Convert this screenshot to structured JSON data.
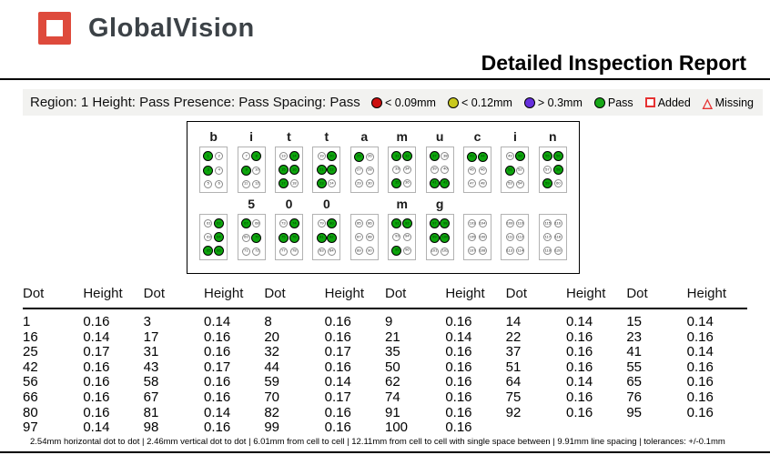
{
  "header": {
    "logo_text": "GlobalVision",
    "title": "Detailed Inspection Report"
  },
  "region_bar": {
    "summary": "Region: 1 Height: Pass Presence: Pass Spacing: Pass",
    "legend": [
      {
        "icon": "red-dot-icon",
        "shape": "circle",
        "color": "#cc0f0f",
        "label": "< 0.09mm"
      },
      {
        "icon": "yellow-dot-icon",
        "shape": "circle",
        "color": "#c9c91e",
        "label": "< 0.12mm"
      },
      {
        "icon": "purple-dot-icon",
        "shape": "circle",
        "color": "#6630dd",
        "label": "> 0.3mm"
      },
      {
        "icon": "green-dot-icon",
        "shape": "circle",
        "color": "#17a817",
        "label": "Pass"
      },
      {
        "icon": "added-square-icon",
        "shape": "square",
        "color": "#e63232",
        "label": "Added"
      },
      {
        "icon": "missing-triangle-icon",
        "shape": "triangle",
        "color": "#e63232",
        "label": "Missing"
      }
    ]
  },
  "braille": {
    "pass_color": "#0da50d",
    "rows": [
      {
        "cells": [
          {
            "label": "b",
            "start": 1,
            "raised": [
              1,
              3
            ]
          },
          {
            "label": "i",
            "start": 7,
            "raised": [
              8,
              9
            ]
          },
          {
            "label": "t",
            "start": 13,
            "raised": [
              14,
              15,
              16,
              17
            ]
          },
          {
            "label": "t",
            "start": 19,
            "raised": [
              20,
              21,
              22,
              23
            ]
          },
          {
            "label": "a",
            "start": 25,
            "raised": [
              25
            ]
          },
          {
            "label": "m",
            "start": 31,
            "raised": [
              31,
              32,
              35
            ]
          },
          {
            "label": "u",
            "start": 37,
            "raised": [
              37,
              41,
              42
            ]
          },
          {
            "label": "c",
            "start": 43,
            "raised": [
              43,
              44
            ]
          },
          {
            "label": "i",
            "start": 49,
            "raised": [
              50,
              51
            ]
          },
          {
            "label": "n",
            "start": 55,
            "raised": [
              55,
              56,
              58,
              59
            ]
          }
        ]
      },
      {
        "cells": [
          {
            "label": "",
            "start": 61,
            "raised": [
              62,
              64,
              65,
              66
            ]
          },
          {
            "label": "5",
            "start": 67,
            "raised": [
              67,
              70
            ]
          },
          {
            "label": "0",
            "start": 73,
            "raised": [
              74,
              75,
              76
            ]
          },
          {
            "label": "0",
            "start": 79,
            "raised": [
              80,
              81,
              82
            ]
          },
          {
            "label": "",
            "start": 85,
            "raised": []
          },
          {
            "label": "m",
            "start": 91,
            "raised": [
              91,
              92,
              95
            ]
          },
          {
            "label": "g",
            "start": 97,
            "raised": [
              97,
              98,
              99,
              100
            ]
          },
          {
            "label": "",
            "start": 103,
            "raised": []
          },
          {
            "label": "",
            "start": 109,
            "raised": []
          },
          {
            "label": "",
            "start": 115,
            "raised": []
          }
        ]
      }
    ]
  },
  "table": {
    "column_headers": [
      "Dot",
      "Height",
      "Dot",
      "Height",
      "Dot",
      "Height",
      "Dot",
      "Height",
      "Dot",
      "Height",
      "Dot",
      "Height"
    ],
    "rows": [
      [
        "1",
        "0.16",
        "3",
        "0.14",
        "8",
        "0.16",
        "9",
        "0.16",
        "14",
        "0.14",
        "15",
        "0.14"
      ],
      [
        "16",
        "0.14",
        "17",
        "0.16",
        "20",
        "0.16",
        "21",
        "0.14",
        "22",
        "0.16",
        "23",
        "0.16"
      ],
      [
        "25",
        "0.17",
        "31",
        "0.16",
        "32",
        "0.17",
        "35",
        "0.16",
        "37",
        "0.16",
        "41",
        "0.14"
      ],
      [
        "42",
        "0.16",
        "43",
        "0.17",
        "44",
        "0.16",
        "50",
        "0.16",
        "51",
        "0.16",
        "55",
        "0.16"
      ],
      [
        "56",
        "0.16",
        "58",
        "0.16",
        "59",
        "0.14",
        "62",
        "0.16",
        "64",
        "0.14",
        "65",
        "0.16"
      ],
      [
        "66",
        "0.16",
        "67",
        "0.16",
        "70",
        "0.17",
        "74",
        "0.16",
        "75",
        "0.16",
        "76",
        "0.16"
      ],
      [
        "80",
        "0.16",
        "81",
        "0.14",
        "82",
        "0.16",
        "91",
        "0.16",
        "92",
        "0.16",
        "95",
        "0.16"
      ],
      [
        "97",
        "0.14",
        "98",
        "0.16",
        "99",
        "0.16",
        "100",
        "0.16",
        "",
        "",
        "",
        ""
      ]
    ]
  },
  "footer": {
    "text": "2.54mm horizontal dot to dot  |  2.46mm vertical dot to dot  |  6.01mm from cell to cell  |  12.11mm from cell to cell with single space between  |  9.91mm line spacing  |  tolerances: +/-0.1mm"
  }
}
